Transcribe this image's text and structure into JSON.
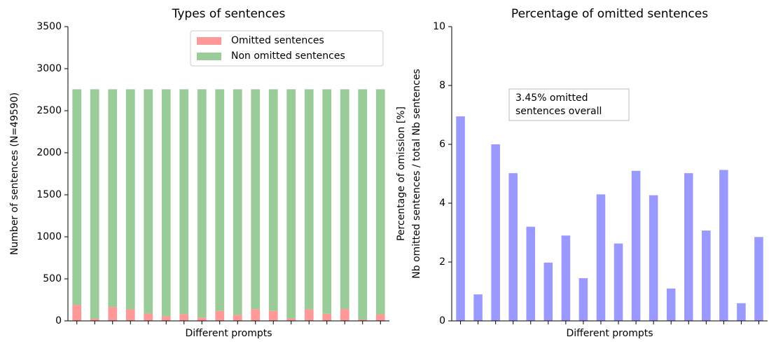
{
  "chart_data": [
    {
      "type": "bar",
      "stacked": true,
      "title": "Types of sentences",
      "xlabel": "Different prompts",
      "ylabel": "Number of sentences (N=49590)",
      "categories": [
        null,
        null,
        null,
        null,
        null,
        null,
        null,
        null,
        null,
        null,
        null,
        null,
        null,
        null,
        null,
        null,
        null,
        null
      ],
      "series": [
        {
          "name": "Omitted sentences",
          "color": "#ff9999",
          "values": [
            191,
            25,
            165,
            138,
            88,
            55,
            80,
            40,
            118,
            72,
            140,
            118,
            30,
            138,
            85,
            141,
            17,
            79
          ]
        },
        {
          "name": "Non omitted sentences",
          "color": "#99cc99",
          "values": [
            2564,
            2730,
            2590,
            2617,
            2667,
            2700,
            2675,
            2715,
            2637,
            2683,
            2615,
            2637,
            2725,
            2617,
            2670,
            2614,
            2738,
            2676
          ]
        }
      ],
      "ylim": [
        0,
        3500
      ],
      "yticks": [
        0,
        500,
        1000,
        1500,
        2000,
        2500,
        3000,
        3500
      ],
      "legend": "upper right"
    },
    {
      "type": "bar",
      "title": "Percentage of omitted sentences",
      "xlabel": "Different prompts",
      "ylabel": [
        "Percentage of omission [%]",
        "Nb omitted sentences / total Nb sentences"
      ],
      "categories": [
        null,
        null,
        null,
        null,
        null,
        null,
        null,
        null,
        null,
        null,
        null,
        null,
        null,
        null,
        null,
        null,
        null,
        null
      ],
      "values": [
        6.95,
        0.9,
        6.0,
        5.02,
        3.2,
        1.98,
        2.9,
        1.45,
        4.3,
        2.63,
        5.1,
        4.27,
        1.1,
        5.02,
        3.07,
        5.13,
        0.6,
        2.85
      ],
      "color": "#9999ff",
      "ylim": [
        0,
        10
      ],
      "yticks": [
        0,
        2,
        4,
        6,
        8,
        10
      ],
      "annotation": [
        "3.45% omitted",
        "sentences overall"
      ]
    }
  ]
}
